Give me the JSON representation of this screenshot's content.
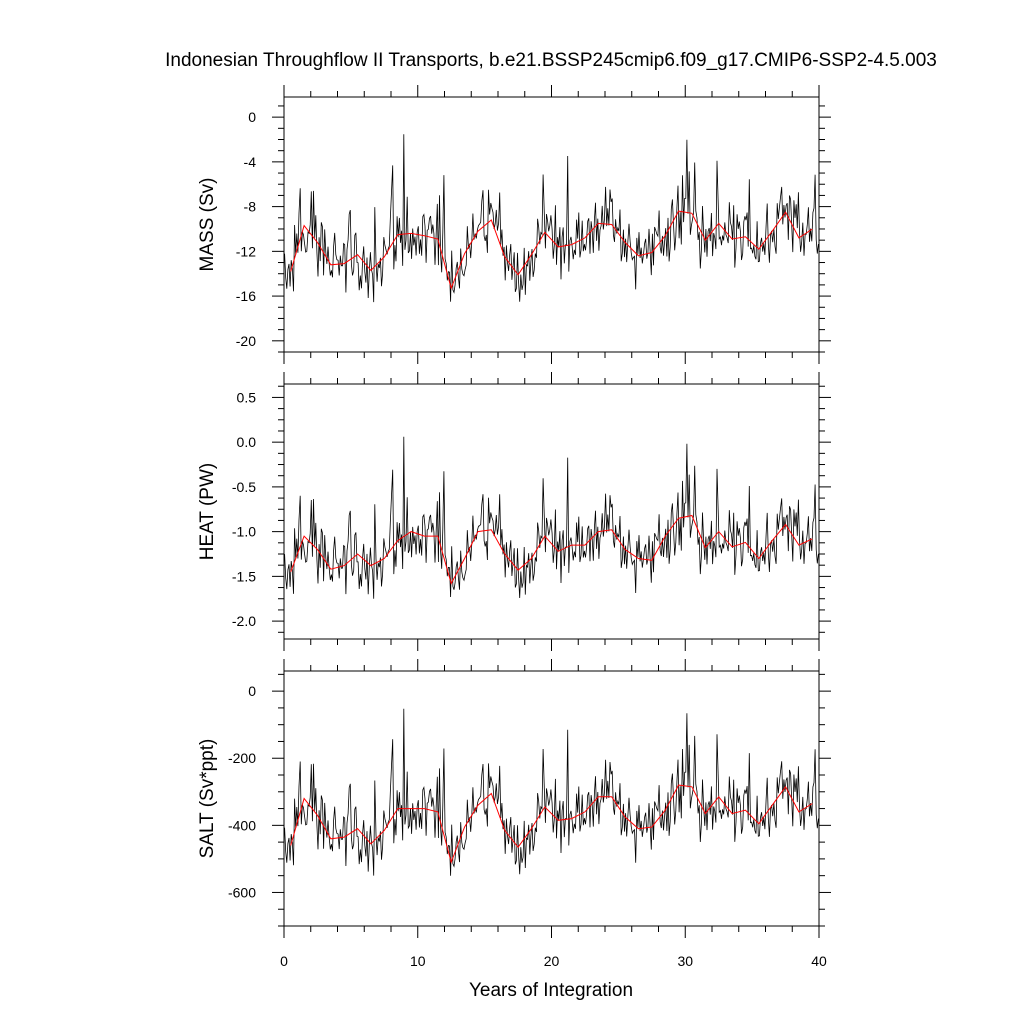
{
  "chart_data": {
    "type": "line",
    "title": "Indonesian Throughflow II Transports, b.e21.BSSP245cmip6.f09_g17.CMIP6-SSP2-4.5.003",
    "xlabel": "Years of Integration",
    "xlim": [
      0,
      40
    ],
    "xticks": [
      "0",
      "10",
      "20",
      "30",
      "40"
    ],
    "grid": false,
    "legend": "none",
    "colors": {
      "monthly": "#000000",
      "annual": "#ff0000"
    },
    "annual_x": [
      0.5,
      1.5,
      2.5,
      3.5,
      4.5,
      5.5,
      6.5,
      7.5,
      8.5,
      9.5,
      10.5,
      11.5,
      12.5,
      13.5,
      14.5,
      15.5,
      16.5,
      17.5,
      18.5,
      19.5,
      20.5,
      21.5,
      22.5,
      23.5,
      24.5,
      25.5,
      26.5,
      27.5,
      28.5,
      29.5,
      30.5,
      31.5,
      32.5,
      33.5,
      34.5,
      35.5,
      36.5,
      37.5,
      38.5,
      39.5
    ],
    "panels": [
      {
        "ylabel": "MASS (Sv)",
        "ylim": [
          -21,
          1.8
        ],
        "yticks": [
          "0",
          "-4",
          "-8",
          "-12",
          "-16",
          "-20"
        ],
        "ytick_values": [
          0,
          -4,
          -8,
          -12,
          -16,
          -20
        ],
        "annual_mean": [
          -13.8,
          -9.7,
          -11.2,
          -13.2,
          -13.1,
          -12.3,
          -13.7,
          -12.5,
          -10.5,
          -10.4,
          -10.6,
          -10.9,
          -15.3,
          -12.2,
          -10.2,
          -9.2,
          -12.5,
          -14.1,
          -12.3,
          -10.3,
          -11.6,
          -11.4,
          -10.8,
          -9.5,
          -9.6,
          -11.2,
          -12.4,
          -12.1,
          -10.6,
          -8.4,
          -8.6,
          -11.0,
          -9.5,
          -10.9,
          -10.7,
          -11.8,
          -10.2,
          -8.5,
          -10.8,
          -10.0
        ],
        "monthly_range": [
          -20.8,
          1.6
        ]
      },
      {
        "ylabel": "HEAT (PW)",
        "ylim": [
          -2.2,
          0.65
        ],
        "yticks": [
          "0.5",
          "0.0",
          "-0.5",
          "-1.0",
          "-1.5",
          "-2.0"
        ],
        "ytick_values": [
          0.5,
          0.0,
          -0.5,
          -1.0,
          -1.5,
          -2.0
        ],
        "annual_mean": [
          -1.45,
          -1.05,
          -1.2,
          -1.42,
          -1.38,
          -1.25,
          -1.38,
          -1.3,
          -1.1,
          -1.0,
          -1.05,
          -1.05,
          -1.58,
          -1.3,
          -1.0,
          -0.98,
          -1.25,
          -1.43,
          -1.3,
          -1.05,
          -1.22,
          -1.15,
          -1.15,
          -1.0,
          -0.98,
          -1.2,
          -1.3,
          -1.32,
          -1.05,
          -0.85,
          -0.82,
          -1.18,
          -1.0,
          -1.17,
          -1.12,
          -1.3,
          -1.1,
          -0.92,
          -1.15,
          -1.08
        ],
        "monthly_range": [
          -2.2,
          0.65
        ]
      },
      {
        "ylabel": "SALT (Sv*ppt)",
        "ylim": [
          -700,
          60
        ],
        "yticks": [
          "0",
          "-200",
          "-400",
          "-600"
        ],
        "ytick_values": [
          0,
          -200,
          -400,
          -600
        ],
        "annual_mean": [
          -460,
          -320,
          -370,
          -440,
          -435,
          -410,
          -455,
          -415,
          -350,
          -350,
          -350,
          -360,
          -510,
          -405,
          -340,
          -305,
          -415,
          -465,
          -410,
          -345,
          -385,
          -380,
          -360,
          -315,
          -315,
          -375,
          -410,
          -405,
          -355,
          -280,
          -285,
          -365,
          -315,
          -365,
          -355,
          -395,
          -340,
          -285,
          -360,
          -335
        ],
        "monthly_range": [
          -700,
          50
        ]
      }
    ]
  }
}
